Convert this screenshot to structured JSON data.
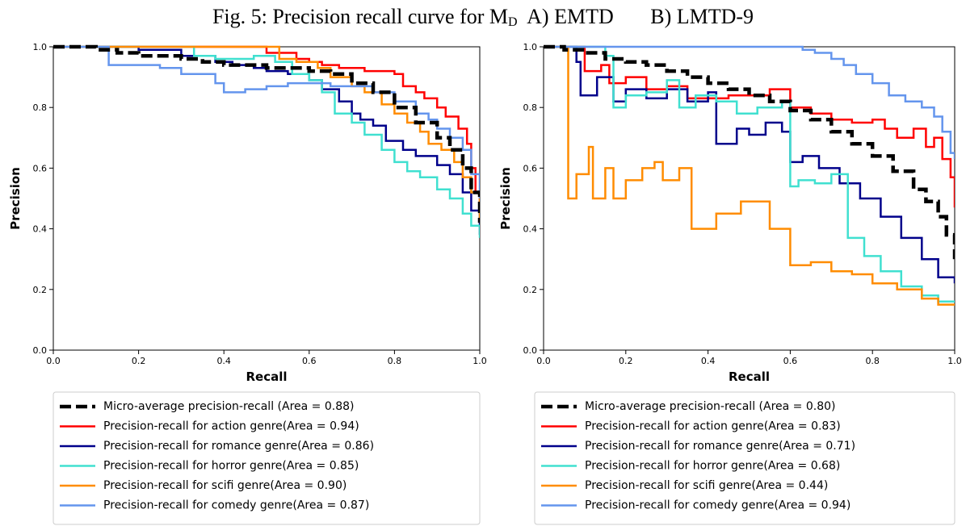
{
  "figure": {
    "title_prefix": "Fig. 5: Precision recall curve for M",
    "title_sub": "D",
    "title_suffix": "  A) EMTD       B) LMTD-9"
  },
  "chart_data": [
    {
      "type": "line",
      "panel": "A",
      "xlabel": "Recall",
      "ylabel": "Precision",
      "xlim": [
        0,
        1
      ],
      "ylim": [
        0,
        1
      ],
      "xticks": [
        "0.0",
        "0.2",
        "0.4",
        "0.6",
        "0.8",
        "1.0"
      ],
      "yticks": [
        "0.0",
        "0.2",
        "0.4",
        "0.6",
        "0.8",
        "1.0"
      ],
      "grid": false,
      "legend_placement": "below",
      "series": [
        {
          "name": "Micro-average precision-recall (Area = 0.88)",
          "color": "#000000",
          "dashed": true,
          "x": [
            0,
            0.05,
            0.1,
            0.15,
            0.2,
            0.25,
            0.3,
            0.35,
            0.4,
            0.45,
            0.5,
            0.55,
            0.6,
            0.65,
            0.7,
            0.75,
            0.8,
            0.85,
            0.9,
            0.93,
            0.96,
            0.98,
            1.0
          ],
          "y": [
            1.0,
            1.0,
            0.99,
            0.98,
            0.97,
            0.97,
            0.96,
            0.95,
            0.94,
            0.94,
            0.93,
            0.93,
            0.92,
            0.91,
            0.88,
            0.85,
            0.8,
            0.75,
            0.7,
            0.66,
            0.6,
            0.52,
            0.42
          ]
        },
        {
          "name": "Precision-recall for action genre(Area = 0.94)",
          "color": "#ff0000",
          "dashed": false,
          "x": [
            0,
            0.48,
            0.5,
            0.55,
            0.57,
            0.6,
            0.63,
            0.67,
            0.7,
            0.73,
            0.76,
            0.8,
            0.82,
            0.85,
            0.87,
            0.9,
            0.92,
            0.95,
            0.97,
            0.98,
            0.99,
            1.0
          ],
          "y": [
            1.0,
            1.0,
            0.98,
            0.98,
            0.96,
            0.95,
            0.94,
            0.93,
            0.93,
            0.92,
            0.92,
            0.91,
            0.87,
            0.85,
            0.83,
            0.8,
            0.77,
            0.73,
            0.68,
            0.6,
            0.52,
            0.45
          ]
        },
        {
          "name": "Precision-recall for romance genre(Area = 0.86)",
          "color": "#00008b",
          "dashed": false,
          "x": [
            0,
            0.2,
            0.3,
            0.38,
            0.42,
            0.47,
            0.5,
            0.55,
            0.6,
            0.63,
            0.67,
            0.7,
            0.72,
            0.75,
            0.78,
            0.82,
            0.85,
            0.9,
            0.93,
            0.96,
            0.98,
            1.0
          ],
          "y": [
            1.0,
            0.99,
            0.97,
            0.95,
            0.94,
            0.93,
            0.92,
            0.91,
            0.89,
            0.86,
            0.82,
            0.78,
            0.76,
            0.74,
            0.69,
            0.66,
            0.64,
            0.61,
            0.58,
            0.52,
            0.46,
            0.38
          ]
        },
        {
          "name": "Precision-recall for horror genre(Area = 0.85)",
          "color": "#40e0d0",
          "dashed": false,
          "x": [
            0,
            0.3,
            0.33,
            0.38,
            0.43,
            0.47,
            0.52,
            0.56,
            0.6,
            0.63,
            0.66,
            0.7,
            0.73,
            0.77,
            0.8,
            0.83,
            0.86,
            0.9,
            0.93,
            0.96,
            0.98,
            1.0
          ],
          "y": [
            1.0,
            1.0,
            0.97,
            0.96,
            0.96,
            0.97,
            0.95,
            0.91,
            0.89,
            0.85,
            0.78,
            0.75,
            0.71,
            0.66,
            0.62,
            0.59,
            0.57,
            0.53,
            0.5,
            0.45,
            0.41,
            0.37
          ]
        },
        {
          "name": "Precision-recall for scifi genre(Area = 0.90)",
          "color": "#ff8c00",
          "dashed": false,
          "x": [
            0,
            0.5,
            0.53,
            0.57,
            0.62,
            0.65,
            0.7,
            0.73,
            0.77,
            0.8,
            0.83,
            0.86,
            0.88,
            0.91,
            0.94,
            0.96,
            0.98,
            1.0
          ],
          "y": [
            1.0,
            1.0,
            0.96,
            0.95,
            0.93,
            0.9,
            0.87,
            0.85,
            0.81,
            0.78,
            0.75,
            0.72,
            0.68,
            0.66,
            0.62,
            0.57,
            0.52,
            0.43
          ]
        },
        {
          "name": "Precision-recall for comedy genre(Area = 0.87)",
          "color": "#6495ed",
          "dashed": false,
          "x": [
            0,
            0.12,
            0.13,
            0.2,
            0.25,
            0.3,
            0.38,
            0.4,
            0.45,
            0.5,
            0.55,
            0.6,
            0.65,
            0.7,
            0.75,
            0.8,
            0.85,
            0.88,
            0.9,
            0.93,
            0.96,
            0.98,
            1.0
          ],
          "y": [
            1.0,
            1.0,
            0.94,
            0.94,
            0.93,
            0.91,
            0.88,
            0.85,
            0.86,
            0.87,
            0.88,
            0.88,
            0.87,
            0.87,
            0.85,
            0.82,
            0.78,
            0.76,
            0.73,
            0.7,
            0.66,
            0.58,
            0.5
          ]
        }
      ]
    },
    {
      "type": "line",
      "panel": "B",
      "xlabel": "Recall",
      "ylabel": "Precision",
      "xlim": [
        0,
        1
      ],
      "ylim": [
        0,
        1
      ],
      "xticks": [
        "0.0",
        "0.2",
        "0.4",
        "0.6",
        "0.8",
        "1.0"
      ],
      "yticks": [
        "0.0",
        "0.2",
        "0.4",
        "0.6",
        "0.8",
        "1.0"
      ],
      "grid": false,
      "legend_placement": "below",
      "series": [
        {
          "name": "Micro-average precision-recall (Area = 0.80)",
          "color": "#000000",
          "dashed": true,
          "x": [
            0,
            0.05,
            0.1,
            0.15,
            0.2,
            0.25,
            0.3,
            0.35,
            0.4,
            0.45,
            0.5,
            0.55,
            0.6,
            0.65,
            0.7,
            0.75,
            0.8,
            0.85,
            0.9,
            0.93,
            0.96,
            0.98,
            1.0
          ],
          "y": [
            1.0,
            0.99,
            0.98,
            0.96,
            0.95,
            0.94,
            0.92,
            0.9,
            0.88,
            0.86,
            0.84,
            0.82,
            0.79,
            0.76,
            0.72,
            0.68,
            0.64,
            0.59,
            0.53,
            0.49,
            0.44,
            0.38,
            0.3
          ]
        },
        {
          "name": "Precision-recall for action genre(Area = 0.83)",
          "color": "#ff0000",
          "dashed": false,
          "x": [
            0,
            0.08,
            0.1,
            0.14,
            0.16,
            0.2,
            0.25,
            0.3,
            0.35,
            0.4,
            0.45,
            0.5,
            0.55,
            0.6,
            0.65,
            0.7,
            0.75,
            0.8,
            0.83,
            0.86,
            0.9,
            0.93,
            0.95,
            0.97,
            0.99,
            1.0
          ],
          "y": [
            1.0,
            1.0,
            0.92,
            0.94,
            0.88,
            0.9,
            0.86,
            0.87,
            0.83,
            0.83,
            0.84,
            0.84,
            0.86,
            0.8,
            0.78,
            0.76,
            0.75,
            0.76,
            0.73,
            0.7,
            0.73,
            0.67,
            0.7,
            0.63,
            0.57,
            0.47
          ]
        },
        {
          "name": "Precision-recall for romance genre(Area = 0.71)",
          "color": "#00008b",
          "dashed": false,
          "x": [
            0,
            0.08,
            0.09,
            0.13,
            0.17,
            0.2,
            0.25,
            0.3,
            0.35,
            0.4,
            0.42,
            0.47,
            0.5,
            0.54,
            0.58,
            0.6,
            0.63,
            0.67,
            0.72,
            0.77,
            0.82,
            0.87,
            0.92,
            0.96,
            1.0
          ],
          "y": [
            1.0,
            0.95,
            0.84,
            0.9,
            0.82,
            0.86,
            0.83,
            0.86,
            0.82,
            0.85,
            0.68,
            0.73,
            0.71,
            0.75,
            0.72,
            0.62,
            0.64,
            0.6,
            0.55,
            0.5,
            0.44,
            0.37,
            0.3,
            0.24,
            0.22
          ]
        },
        {
          "name": "Precision-recall for horror genre(Area = 0.68)",
          "color": "#40e0d0",
          "dashed": false,
          "x": [
            0,
            0.15,
            0.17,
            0.2,
            0.25,
            0.3,
            0.33,
            0.37,
            0.42,
            0.47,
            0.52,
            0.58,
            0.6,
            0.62,
            0.66,
            0.7,
            0.74,
            0.78,
            0.82,
            0.87,
            0.92,
            0.96,
            1.0
          ],
          "y": [
            1.0,
            0.97,
            0.8,
            0.84,
            0.85,
            0.89,
            0.8,
            0.84,
            0.82,
            0.78,
            0.8,
            0.82,
            0.54,
            0.56,
            0.55,
            0.58,
            0.37,
            0.31,
            0.26,
            0.21,
            0.18,
            0.16,
            0.16
          ]
        },
        {
          "name": "Precision-recall for scifi genre(Area = 0.44)",
          "color": "#ff8c00",
          "dashed": false,
          "x": [
            0,
            0.05,
            0.06,
            0.08,
            0.11,
            0.12,
            0.15,
            0.17,
            0.2,
            0.24,
            0.27,
            0.29,
            0.33,
            0.36,
            0.42,
            0.48,
            0.55,
            0.6,
            0.65,
            0.7,
            0.75,
            0.8,
            0.86,
            0.92,
            0.96,
            1.0
          ],
          "y": [
            1.0,
            1.0,
            0.5,
            0.58,
            0.67,
            0.5,
            0.6,
            0.5,
            0.56,
            0.6,
            0.62,
            0.56,
            0.6,
            0.4,
            0.45,
            0.49,
            0.4,
            0.28,
            0.29,
            0.26,
            0.25,
            0.22,
            0.2,
            0.17,
            0.15,
            0.15
          ]
        },
        {
          "name": "Precision-recall for comedy genre(Area = 0.94)",
          "color": "#6495ed",
          "dashed": false,
          "x": [
            0,
            0.6,
            0.63,
            0.66,
            0.7,
            0.73,
            0.76,
            0.8,
            0.84,
            0.88,
            0.92,
            0.95,
            0.97,
            0.99,
            1.0
          ],
          "y": [
            1.0,
            1.0,
            0.99,
            0.98,
            0.96,
            0.94,
            0.91,
            0.88,
            0.84,
            0.82,
            0.8,
            0.77,
            0.72,
            0.65,
            0.63
          ]
        }
      ]
    }
  ]
}
